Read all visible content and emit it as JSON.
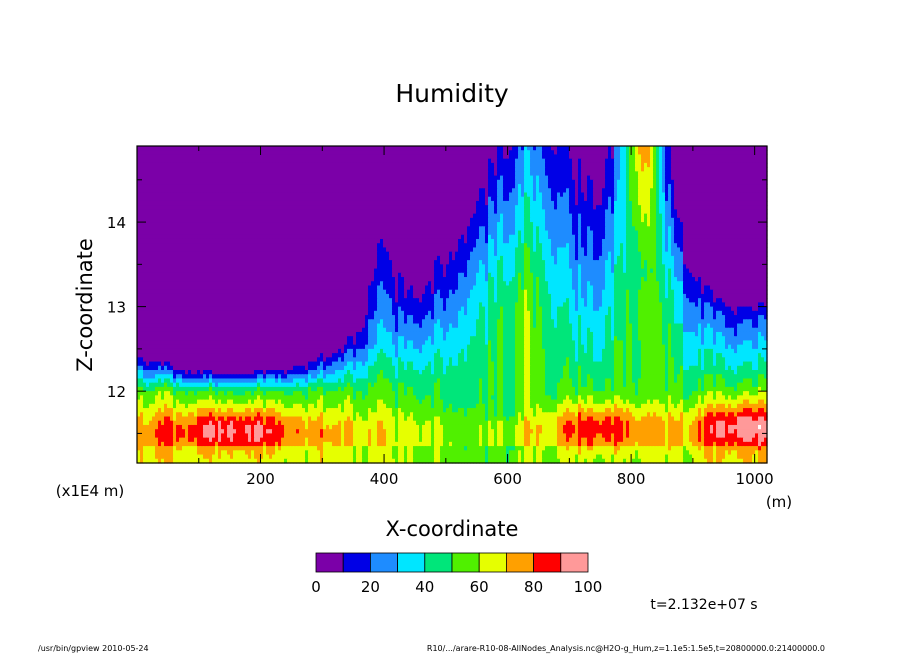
{
  "chart_data": {
    "type": "heatmap",
    "title": "Humidity",
    "xlabel": "X-coordinate",
    "ylabel": "Z-coordinate",
    "xunit": "(m)",
    "yunit": "(x1E4 m)",
    "xlim": [
      0,
      1020
    ],
    "ylim": [
      11.15,
      14.9
    ],
    "xticks": [
      200,
      400,
      600,
      800,
      1000
    ],
    "xticklabels": [
      "200",
      "400",
      "600",
      "800",
      "1000"
    ],
    "yticks": [
      12,
      13,
      14
    ],
    "yticklabels": [
      "12",
      "13",
      "14"
    ],
    "colorbar": {
      "levels": [
        0,
        10,
        20,
        30,
        40,
        50,
        60,
        70,
        80,
        90,
        100
      ],
      "labels": [
        "0",
        "20",
        "40",
        "60",
        "80",
        "100"
      ],
      "label_values": [
        0,
        20,
        40,
        60,
        80,
        100
      ],
      "colors": [
        "#7b00a8",
        "#0000e6",
        "#1e8cff",
        "#00e6ff",
        "#00e67a",
        "#50f000",
        "#e6ff00",
        "#ffa000",
        "#ff0000",
        "#ff9999"
      ]
    },
    "above_max_color": "#ffffff",
    "approx_field_description_values": {
      "low_band_peaks": [
        {
          "x": 160,
          "z": 11.55,
          "value": 95
        },
        {
          "x": 740,
          "z": 11.6,
          "value": 95
        },
        {
          "x": 980,
          "z": 11.6,
          "value": 95
        }
      ],
      "upper_plume": {
        "x_range": [
          780,
          860
        ],
        "z_range": [
          13.5,
          14.9
        ],
        "value": 100
      }
    }
  },
  "annotations": {
    "time": "t=2.132e+07 s",
    "footer_left": "/usr/bin/gpview   2010-05-24",
    "footer_right": "R10/.../arare-R10-08-AllNodes_Analysis.nc@H2O-g_Hum,z=1.1e5:1.5e5,t=20800000.0:21400000.0"
  }
}
